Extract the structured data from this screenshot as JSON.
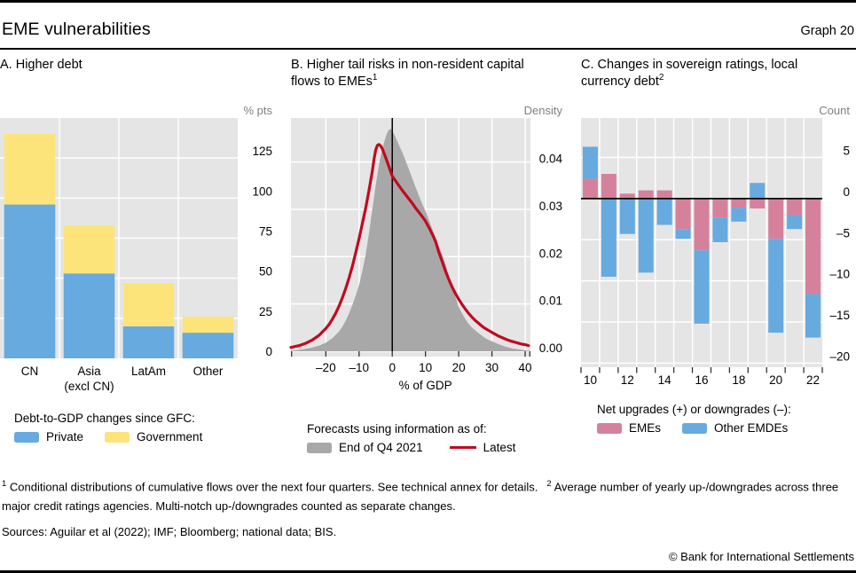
{
  "header": {
    "title": "EME vulnerabilities",
    "graph_label": "Graph 20"
  },
  "colors": {
    "plot_bg": "#e5e5e5",
    "gridline": "#ffffff",
    "zero_line": "#000000",
    "tick_mark": "#333333",
    "axis_unit_text": "#7f7f7f",
    "blue": "#66aae0",
    "yellow": "#fde47a",
    "pink": "#d5819c",
    "gray_area": "#a8a8a8",
    "red_line": "#c10a1e"
  },
  "chart_data": [
    {
      "panel": "A",
      "type": "bar",
      "title": "A. Higher debt",
      "unit_label": "% pts",
      "categories": [
        "CN",
        "Asia\n(excl CN)",
        "LatAm",
        "Other"
      ],
      "series": [
        {
          "name": "Private",
          "color": "#66aae0",
          "values": [
            96,
            53,
            20,
            16
          ]
        },
        {
          "name": "Government",
          "color": "#fde47a",
          "values": [
            44,
            30,
            27,
            10
          ]
        }
      ],
      "yticks": [
        {
          "v": 0,
          "label": "0"
        },
        {
          "v": 25,
          "label": "25"
        },
        {
          "v": 50,
          "label": "50"
        },
        {
          "v": 75,
          "label": "75"
        },
        {
          "v": 100,
          "label": "100"
        },
        {
          "v": 125,
          "label": "125"
        }
      ],
      "ylim": [
        0,
        150
      ],
      "legend_title": "Debt-to-GDP changes since GFC:"
    },
    {
      "panel": "B",
      "type": "area-line",
      "title": "B. Higher tail risks in non-resident capital flows to EMEs",
      "title_sup": "1",
      "unit_label": "Density",
      "xlabel": "% of GDP",
      "xlim": [
        -30.5,
        41.6
      ],
      "ylim": [
        0,
        0.0493
      ],
      "xticks": [
        {
          "v": -20,
          "label": "–20"
        },
        {
          "v": -10,
          "label": "–10"
        },
        {
          "v": 0,
          "label": "0"
        },
        {
          "v": 10,
          "label": "10"
        },
        {
          "v": 20,
          "label": "20"
        },
        {
          "v": 30,
          "label": "30"
        },
        {
          "v": 40,
          "label": "40"
        }
      ],
      "yticks": [
        {
          "v": 0,
          "label": "0.00"
        },
        {
          "v": 0.01,
          "label": "0.01"
        },
        {
          "v": 0.02,
          "label": "0.02"
        },
        {
          "v": 0.03,
          "label": "0.03"
        },
        {
          "v": 0.04,
          "label": "0.04"
        }
      ],
      "zero_vline": 0,
      "legend_title": "Forecasts using information as of:",
      "series": [
        {
          "name": "End of Q4 2021",
          "style": "area",
          "color": "#a8a8a8",
          "points": [
            [
              -30.5,
              0.0001
            ],
            [
              -28,
              0.0003
            ],
            [
              -26,
              0.0005
            ],
            [
              -24,
              0.0008
            ],
            [
              -22,
              0.0012
            ],
            [
              -20,
              0.0018
            ],
            [
              -18,
              0.0028
            ],
            [
              -16,
              0.0042
            ],
            [
              -15,
              0.0052
            ],
            [
              -14,
              0.0065
            ],
            [
              -13,
              0.008
            ],
            [
              -12,
              0.0098
            ],
            [
              -11,
              0.0118
            ],
            [
              -10,
              0.014
            ],
            [
              -9,
              0.017
            ],
            [
              -8,
              0.0205
            ],
            [
              -7,
              0.025
            ],
            [
              -6,
              0.03
            ],
            [
              -5,
              0.035
            ],
            [
              -4,
              0.0395
            ],
            [
              -3,
              0.0428
            ],
            [
              -2,
              0.0452
            ],
            [
              -1.5,
              0.0462
            ],
            [
              -1,
              0.0468
            ],
            [
              -0.5,
              0.047
            ],
            [
              0,
              0.0466
            ],
            [
              1,
              0.0452
            ],
            [
              2,
              0.0436
            ],
            [
              3,
              0.042
            ],
            [
              4,
              0.0403
            ],
            [
              5,
              0.0385
            ],
            [
              6,
              0.0366
            ],
            [
              7,
              0.0347
            ],
            [
              8,
              0.0329
            ],
            [
              9,
              0.0312
            ],
            [
              10,
              0.0296
            ],
            [
              11,
              0.0278
            ],
            [
              12,
              0.0259
            ],
            [
              13,
              0.024
            ],
            [
              14,
              0.0222
            ],
            [
              15,
              0.0205
            ],
            [
              16,
              0.0185
            ],
            [
              17,
              0.016
            ],
            [
              18,
              0.0138
            ],
            [
              19,
              0.0115
            ],
            [
              20,
              0.0094
            ],
            [
              21,
              0.008
            ],
            [
              22,
              0.0068
            ],
            [
              23,
              0.0058
            ],
            [
              24,
              0.005
            ],
            [
              25,
              0.0044
            ],
            [
              26,
              0.0038
            ],
            [
              27,
              0.0033
            ],
            [
              28,
              0.0028
            ],
            [
              29,
              0.0024
            ],
            [
              30,
              0.0021
            ],
            [
              32,
              0.0015
            ],
            [
              34,
              0.001
            ],
            [
              36,
              0.0006
            ],
            [
              38,
              0.0004
            ],
            [
              40,
              0.0002
            ],
            [
              41.5,
              0.0001
            ]
          ]
        },
        {
          "name": "Latest",
          "style": "line",
          "color": "#c10a1e",
          "stroke_width": 3.2,
          "points": [
            [
              -30.5,
              0.0008
            ],
            [
              -28,
              0.0012
            ],
            [
              -26,
              0.0017
            ],
            [
              -24,
              0.0024
            ],
            [
              -22,
              0.0034
            ],
            [
              -20,
              0.0048
            ],
            [
              -19,
              0.0057
            ],
            [
              -18,
              0.0068
            ],
            [
              -17,
              0.0081
            ],
            [
              -16,
              0.0096
            ],
            [
              -15,
              0.0113
            ],
            [
              -14,
              0.0133
            ],
            [
              -13,
              0.0155
            ],
            [
              -12,
              0.018
            ],
            [
              -11,
              0.0208
            ],
            [
              -10,
              0.0238
            ],
            [
              -9,
              0.027
            ],
            [
              -8,
              0.0303
            ],
            [
              -7,
              0.034
            ],
            [
              -6,
              0.038
            ],
            [
              -5.5,
              0.0405
            ],
            [
              -5,
              0.0425
            ],
            [
              -4.5,
              0.0435
            ],
            [
              -4,
              0.0437
            ],
            [
              -3.5,
              0.0434
            ],
            [
              -3,
              0.0428
            ],
            [
              -2,
              0.041
            ],
            [
              -1,
              0.039
            ],
            [
              0,
              0.037
            ],
            [
              1,
              0.036
            ],
            [
              2,
              0.035
            ],
            [
              3,
              0.034
            ],
            [
              4,
              0.0331
            ],
            [
              5,
              0.0322
            ],
            [
              6,
              0.0313
            ],
            [
              7,
              0.0303
            ],
            [
              8,
              0.0294
            ],
            [
              9,
              0.0285
            ],
            [
              10,
              0.0275
            ],
            [
              11,
              0.0262
            ],
            [
              12,
              0.0248
            ],
            [
              13,
              0.0233
            ],
            [
              14,
              0.021
            ],
            [
              15,
              0.019
            ],
            [
              16,
              0.017
            ],
            [
              17,
              0.0152
            ],
            [
              18,
              0.0136
            ],
            [
              19,
              0.0122
            ],
            [
              20,
              0.011
            ],
            [
              21,
              0.0099
            ],
            [
              22,
              0.0089
            ],
            [
              23,
              0.008
            ],
            [
              24,
              0.0072
            ],
            [
              25,
              0.0065
            ],
            [
              26,
              0.0059
            ],
            [
              27,
              0.0053
            ],
            [
              28,
              0.0048
            ],
            [
              29,
              0.0044
            ],
            [
              30,
              0.004
            ],
            [
              31,
              0.0036
            ],
            [
              32,
              0.0032
            ],
            [
              33,
              0.0029
            ],
            [
              34,
              0.0026
            ],
            [
              35,
              0.0023
            ],
            [
              36,
              0.0021
            ],
            [
              37,
              0.0019
            ],
            [
              38,
              0.0017
            ],
            [
              39,
              0.0015
            ],
            [
              40,
              0.0014
            ],
            [
              41,
              0.0012
            ]
          ]
        }
      ]
    },
    {
      "panel": "C",
      "type": "stacked-bar",
      "title": "C. Changes in sovereign ratings, local currency debt",
      "title_sup": "2",
      "unit_label": "Count",
      "categories": [
        "2010",
        "2011",
        "2012",
        "2013",
        "2014",
        "2015",
        "2016",
        "2017",
        "2018",
        "2019",
        "2020",
        "2021",
        "2022"
      ],
      "xtick_labels": [
        {
          "index": 0,
          "label": "10"
        },
        {
          "index": 2,
          "label": "12"
        },
        {
          "index": 4,
          "label": "14"
        },
        {
          "index": 6,
          "label": "16"
        },
        {
          "index": 8,
          "label": "18"
        },
        {
          "index": 10,
          "label": "20"
        },
        {
          "index": 12,
          "label": "22"
        }
      ],
      "series": [
        {
          "name": "EMEs",
          "color": "#d5819c",
          "values": [
            2.4,
            3.0,
            0.6,
            1.0,
            1.0,
            -3.7,
            -6.3,
            -2.3,
            -1.1,
            -1.2,
            -4.9,
            -2.0,
            -11.6
          ]
        },
        {
          "name": "Other EMDEs",
          "color": "#66aae0",
          "values": [
            3.9,
            -9.5,
            -4.3,
            -9.0,
            -3.2,
            -1.2,
            -8.9,
            -3.0,
            -1.7,
            1.9,
            -11.4,
            -1.7,
            -5.3
          ]
        }
      ],
      "yticks": [
        {
          "v": 5,
          "label": "5"
        },
        {
          "v": 0,
          "label": "0"
        },
        {
          "v": -5,
          "label": "–5"
        },
        {
          "v": -10,
          "label": "–10"
        },
        {
          "v": -15,
          "label": "–15"
        },
        {
          "v": -20,
          "label": "–20"
        }
      ],
      "ylim": [
        -20.5,
        9.8
      ],
      "legend_title": "Net upgrades (+) or downgrades (–):"
    }
  ],
  "footnotes": {
    "fn1_sup": "1",
    "fn1": "Conditional distributions of cumulative flows over the next four quarters. See technical annex for details.",
    "fn2_sup": "2",
    "fn2": "Average number of yearly up-/downgrades across three major credit ratings agencies. Multi-notch up-/downgrades counted as separate changes.",
    "sources": "Sources: Aguilar et al (2022); IMF; Bloomberg; national data; BIS.",
    "copyright": "© Bank for International Settlements"
  }
}
